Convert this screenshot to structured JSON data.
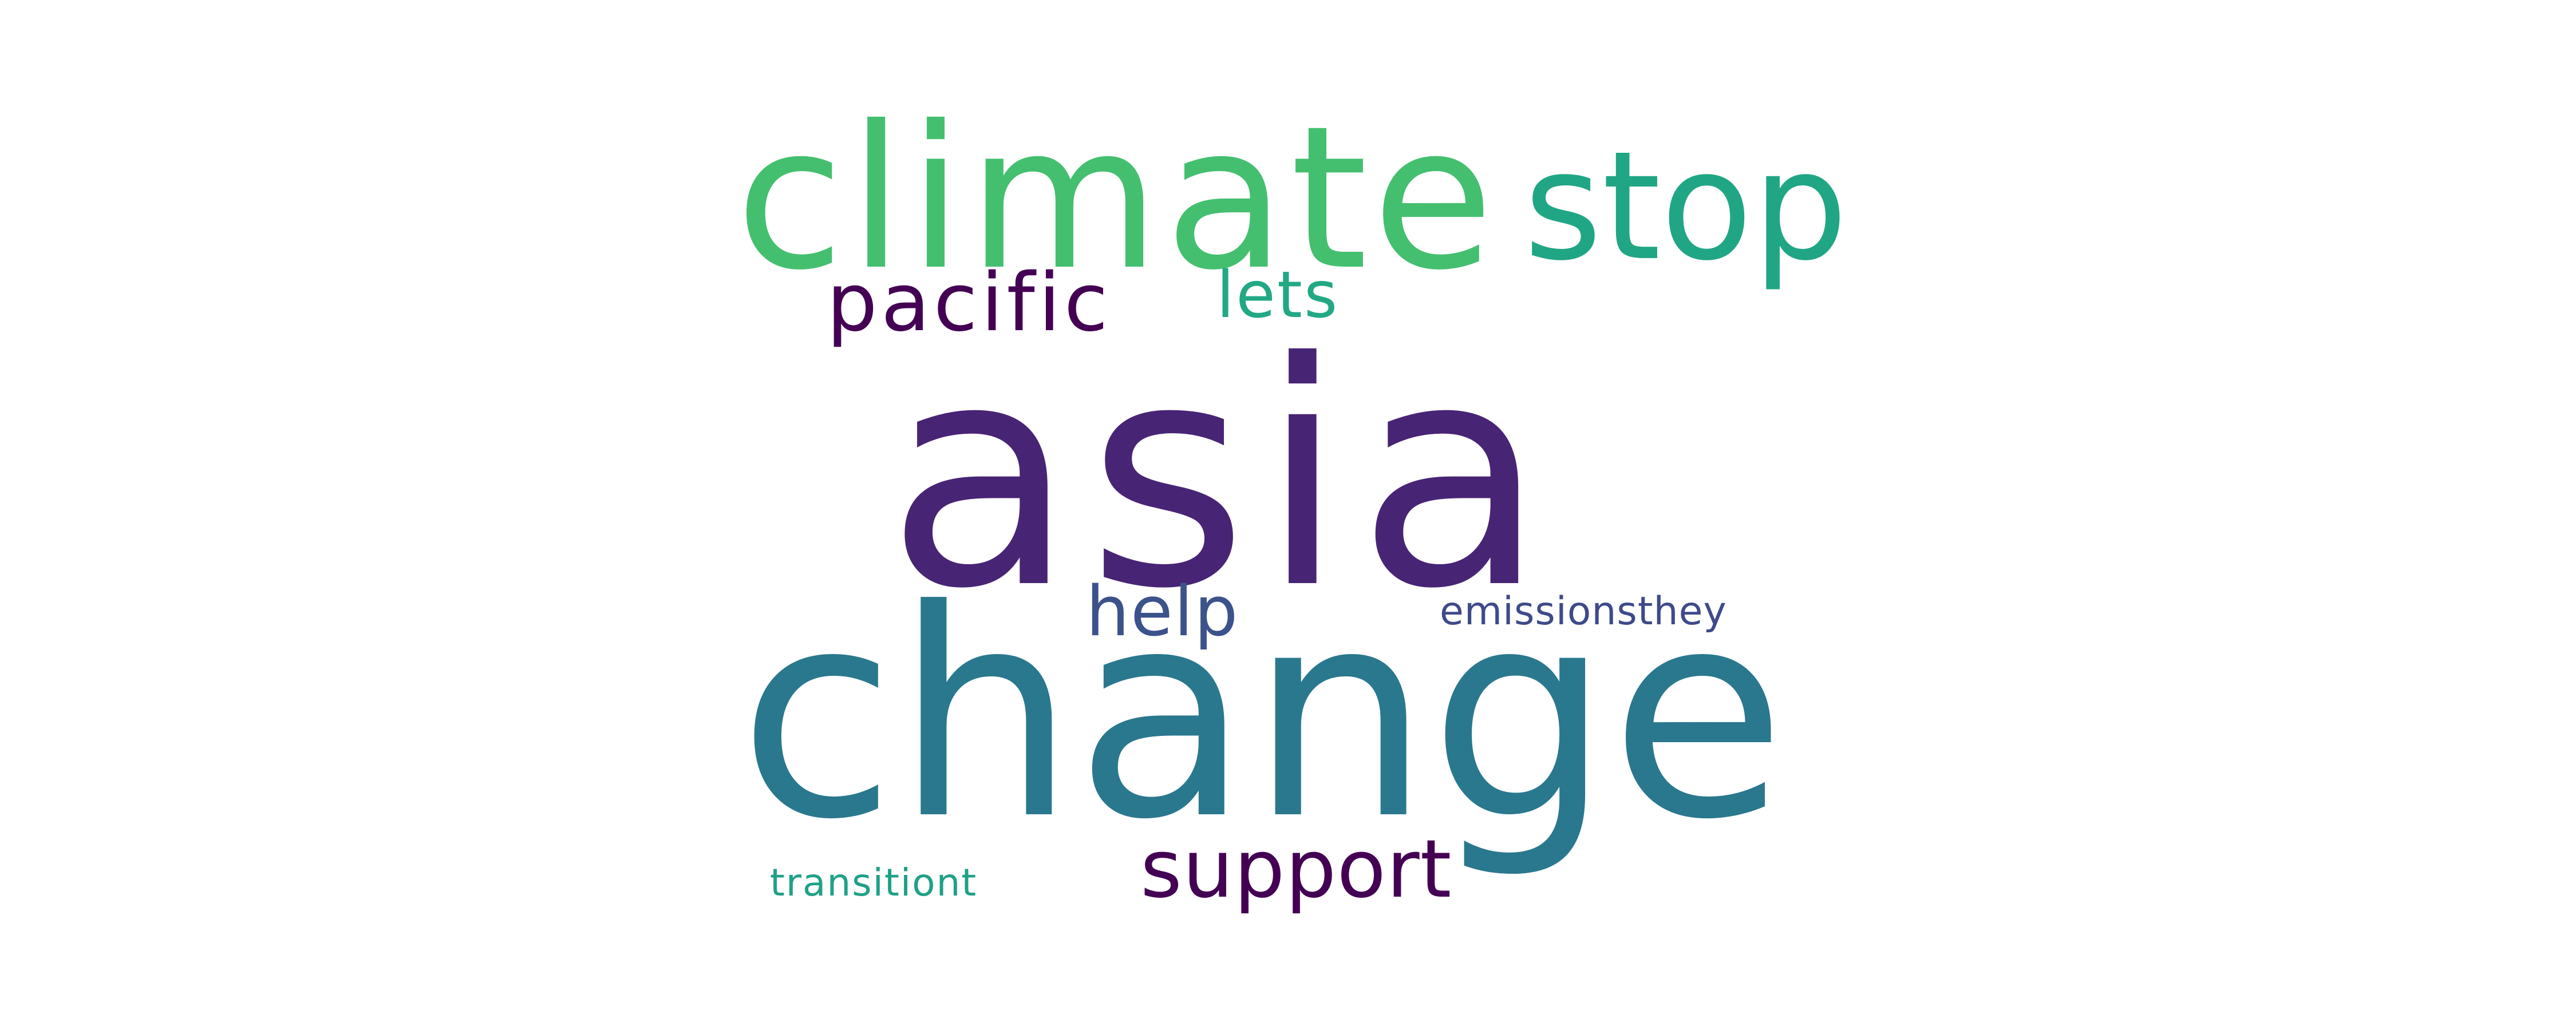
{
  "word_cloud": {
    "words": [
      {
        "text": "asia",
        "color": "#482475"
      },
      {
        "text": "change",
        "color": "#2a788e"
      },
      {
        "text": "climate",
        "color": "#44bf70"
      },
      {
        "text": "stop",
        "color": "#21a685"
      },
      {
        "text": "pacific",
        "color": "#440154"
      },
      {
        "text": "lets",
        "color": "#22a884"
      },
      {
        "text": "help",
        "color": "#3b528b"
      },
      {
        "text": "emissionsthey",
        "color": "#3e4a89"
      },
      {
        "text": "support",
        "color": "#440154"
      },
      {
        "text": "transitiont",
        "color": "#1fa187"
      }
    ]
  }
}
